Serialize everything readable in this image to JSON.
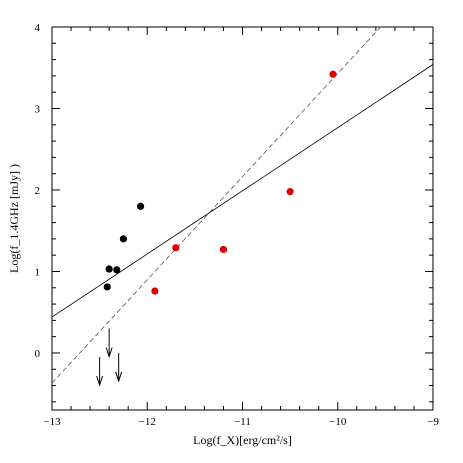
{
  "chart_data": {
    "type": "scatter",
    "xlabel": "Log(f_X)[erg/cm²/s]",
    "ylabel": "Log(f_1.4GHz [mJy] )",
    "xlim": [
      -13,
      -9
    ],
    "ylim": [
      -0.7,
      4
    ],
    "x_ticks": [
      -13,
      -12,
      -11,
      -10,
      -9
    ],
    "y_ticks": [
      0,
      1,
      2,
      3,
      4
    ],
    "grid": false,
    "series": [
      {
        "color": "#000000",
        "marker": "circle",
        "points": [
          [
            -12.4,
            1.03
          ],
          [
            -12.32,
            1.02
          ],
          [
            -12.42,
            0.81
          ],
          [
            -12.25,
            1.4
          ],
          [
            -12.07,
            1.8
          ]
        ]
      },
      {
        "color": "#e00000",
        "marker": "circle",
        "points": [
          [
            -11.92,
            0.76
          ],
          [
            -11.7,
            1.29
          ],
          [
            -11.2,
            1.27
          ],
          [
            -10.5,
            1.98
          ],
          [
            -10.05,
            3.42
          ]
        ]
      }
    ],
    "upper_limits": [
      [
        -12.4,
        0.3
      ],
      [
        -12.5,
        -0.05
      ],
      [
        -12.3,
        0.0
      ]
    ],
    "lines": [
      {
        "style": "solid",
        "points": [
          [
            -13,
            0.44
          ],
          [
            -9,
            3.54
          ]
        ]
      },
      {
        "style": "dashed",
        "points": [
          [
            -13,
            -0.37
          ],
          [
            -9.55,
            4.0
          ]
        ]
      }
    ]
  }
}
